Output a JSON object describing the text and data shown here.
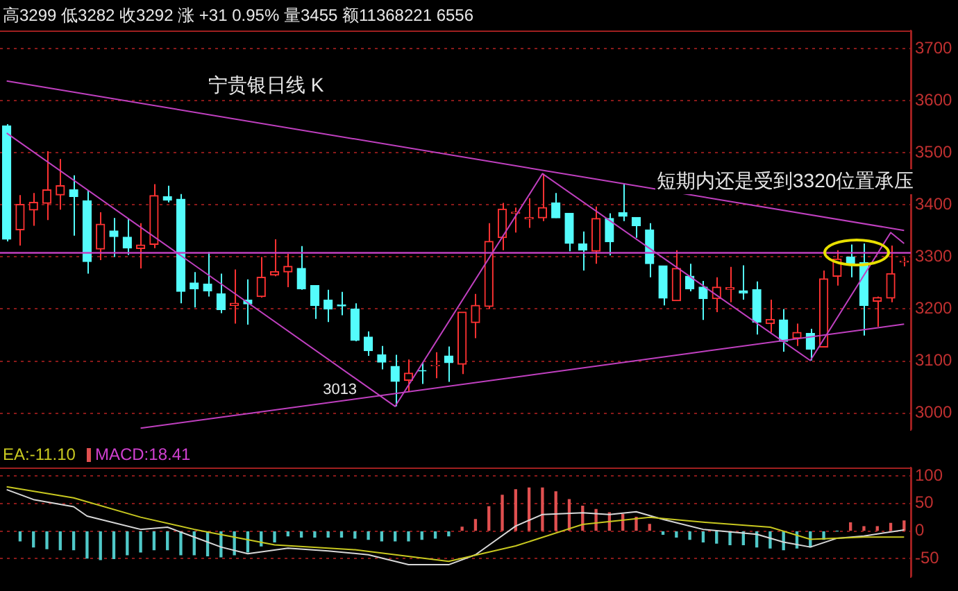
{
  "chart_data": [
    {
      "type": "candlestick",
      "title": "宁贵银日线 K",
      "annotations": [
        "高3299 低3282 收3292 涨 +31 0.95% 量3455 额11368221 6556",
        "短期内还是受到3320位置承压",
        {
          "text": "3013",
          "y": 3013
        }
      ],
      "categories": [
        null,
        null,
        null,
        null,
        null,
        null,
        null,
        null,
        null,
        null,
        null,
        null,
        null,
        null,
        null,
        null,
        null,
        null,
        null,
        null,
        null,
        null,
        null,
        null,
        null,
        null,
        null,
        null,
        null,
        null,
        null,
        null,
        null,
        null,
        null,
        null,
        null,
        null,
        null,
        null,
        null,
        null,
        null,
        null,
        null,
        null,
        null,
        null,
        null,
        null,
        null,
        null,
        null,
        null,
        null,
        null,
        null,
        null,
        null,
        null,
        null,
        null,
        null,
        null,
        null,
        null,
        null,
        null
      ],
      "ohlc": [
        [
          3552,
          3555,
          3330,
          3334
        ],
        [
          3352,
          3419,
          3322,
          3401
        ],
        [
          3390,
          3423,
          3360,
          3405
        ],
        [
          3403,
          3503,
          3371,
          3429
        ],
        [
          3419,
          3488,
          3391,
          3437
        ],
        [
          3429,
          3457,
          3341,
          3416
        ],
        [
          3408,
          3428,
          3268,
          3291
        ],
        [
          3315,
          3386,
          3294,
          3363
        ],
        [
          3350,
          3375,
          3300,
          3339
        ],
        [
          3338,
          3373,
          3304,
          3317
        ],
        [
          3316,
          3365,
          3278,
          3323
        ],
        [
          3324,
          3440,
          3317,
          3418
        ],
        [
          3416,
          3437,
          3405,
          3409
        ],
        [
          3411,
          3421,
          3211,
          3234
        ],
        [
          3250,
          3271,
          3203,
          3239
        ],
        [
          3248,
          3310,
          3224,
          3235
        ],
        [
          3229,
          3268,
          3192,
          3199
        ],
        [
          3207,
          3276,
          3172,
          3211
        ],
        [
          3217,
          3257,
          3170,
          3210
        ],
        [
          3224,
          3300,
          3222,
          3261
        ],
        [
          3265,
          3334,
          3263,
          3272
        ],
        [
          3271,
          3306,
          3242,
          3282
        ],
        [
          3278,
          3321,
          3237,
          3239
        ],
        [
          3245,
          3245,
          3181,
          3207
        ],
        [
          3217,
          3237,
          3175,
          3200
        ],
        [
          3208,
          3233,
          3188,
          3206
        ],
        [
          3200,
          3211,
          3138,
          3140
        ],
        [
          3146,
          3157,
          3110,
          3120
        ],
        [
          3112,
          3129,
          3084,
          3098
        ],
        [
          3090,
          3112,
          3013,
          3061
        ],
        [
          3063,
          3103,
          3042,
          3077
        ],
        [
          3082,
          3098,
          3056,
          3081
        ],
        [
          3091,
          3117,
          3067,
          3092
        ],
        [
          3110,
          3128,
          3060,
          3097
        ],
        [
          3094,
          3194,
          3075,
          3194
        ],
        [
          3174,
          3229,
          3144,
          3207
        ],
        [
          3205,
          3365,
          3200,
          3330
        ],
        [
          3337,
          3404,
          3313,
          3392
        ],
        [
          3384,
          3395,
          3347,
          3386
        ],
        [
          3373,
          3413,
          3356,
          3376
        ],
        [
          3375,
          3460,
          3369,
          3395
        ],
        [
          3404,
          3423,
          3375,
          3375
        ],
        [
          3384,
          3384,
          3311,
          3326
        ],
        [
          3325,
          3349,
          3274,
          3313
        ],
        [
          3311,
          3397,
          3287,
          3374
        ],
        [
          3374,
          3384,
          3303,
          3329
        ],
        [
          3385,
          3441,
          3369,
          3378
        ],
        [
          3376,
          3376,
          3337,
          3360
        ],
        [
          3352,
          3365,
          3261,
          3287
        ],
        [
          3283,
          3283,
          3207,
          3221
        ],
        [
          3216,
          3313,
          3216,
          3278
        ],
        [
          3263,
          3287,
          3234,
          3239
        ],
        [
          3242,
          3254,
          3179,
          3220
        ],
        [
          3220,
          3261,
          3194,
          3242
        ],
        [
          3238,
          3281,
          3213,
          3241
        ],
        [
          3235,
          3284,
          3218,
          3231
        ],
        [
          3237,
          3253,
          3151,
          3175
        ],
        [
          3172,
          3218,
          3155,
          3180
        ],
        [
          3179,
          3200,
          3118,
          3138
        ],
        [
          3144,
          3172,
          3129,
          3155
        ],
        [
          3153,
          3162,
          3101,
          3123
        ],
        [
          3127,
          3274,
          3127,
          3258
        ],
        [
          3263,
          3313,
          3245,
          3296
        ],
        [
          3300,
          3324,
          3261,
          3287
        ],
        [
          3289,
          3326,
          3149,
          3207
        ],
        [
          3215,
          3224,
          3166,
          3222
        ],
        [
          3221,
          3322,
          3213,
          3268
        ],
        [
          3290,
          3299,
          3282,
          3292
        ]
      ],
      "colors": [
        "#54fcfc",
        "#ff3232",
        "#ff3232",
        "#ff3232",
        "#ff3232",
        "#54fcfc",
        "#54fcfc",
        "#ff3232",
        "#54fcfc",
        "#54fcfc",
        "#ff3232",
        "#ff3232",
        "#54fcfc",
        "#54fcfc",
        "#54fcfc",
        "#54fcfc",
        "#54fcfc",
        "#ff3232",
        "#54fcfc",
        "#ff3232",
        "#ff3232",
        "#ff3232",
        "#54fcfc",
        "#54fcfc",
        "#54fcfc",
        "#54fcfc",
        "#54fcfc",
        "#54fcfc",
        "#54fcfc",
        "#54fcfc",
        "#ff3232",
        "#54fcfc",
        "#ff3232",
        "#54fcfc",
        "#ff3232",
        "#ff3232",
        "#ff3232",
        "#ff3232",
        "#ff3232",
        "#ff3232",
        "#ff3232",
        "#54fcfc",
        "#54fcfc",
        "#54fcfc",
        "#ff3232",
        "#54fcfc",
        "#54fcfc",
        "#54fcfc",
        "#54fcfc",
        "#54fcfc",
        "#ff3232",
        "#54fcfc",
        "#54fcfc",
        "#ff3232",
        "#ff3232",
        "#54fcfc",
        "#54fcfc",
        "#ff3232",
        "#54fcfc",
        "#ff3232",
        "#54fcfc",
        "#ff3232",
        "#ff3232",
        "#54fcfc",
        "#54fcfc",
        "#ff3232",
        "#ff3232",
        "#ff3232"
      ],
      "series": [
        {
          "type": "line",
          "color": "#c040c0",
          "values": [
            3638,
            null,
            null,
            null,
            null,
            null,
            null,
            null,
            null,
            null,
            null,
            null,
            null,
            null,
            null,
            null,
            null,
            null,
            null,
            null,
            null,
            null,
            null,
            null,
            null,
            null,
            null,
            null,
            null,
            null,
            null,
            null,
            null,
            null,
            null,
            null,
            null,
            null,
            null,
            null,
            null,
            null,
            null,
            null,
            null,
            null,
            null,
            null,
            null,
            null,
            null,
            null,
            null,
            null,
            null,
            null,
            null,
            null,
            null,
            null,
            null,
            null,
            null,
            null,
            null,
            null,
            null,
            3351
          ]
        },
        {
          "type": "line",
          "color": "#c040c0",
          "values": [
            null,
            null,
            null,
            null,
            null,
            null,
            null,
            null,
            null,
            null,
            2971,
            null,
            null,
            null,
            null,
            null,
            null,
            null,
            null,
            null,
            null,
            null,
            null,
            null,
            null,
            null,
            null,
            null,
            null,
            null,
            null,
            null,
            null,
            null,
            null,
            null,
            null,
            null,
            null,
            null,
            null,
            null,
            null,
            null,
            null,
            null,
            null,
            null,
            null,
            null,
            null,
            null,
            null,
            null,
            null,
            null,
            null,
            null,
            null,
            null,
            null,
            null,
            null,
            null,
            null,
            null,
            null,
            3171
          ]
        },
        {
          "type": "line",
          "color": "#c040c0",
          "values": [
            3538,
            null,
            null,
            null,
            null,
            null,
            null,
            null,
            null,
            null,
            null,
            null,
            null,
            null,
            null,
            null,
            null,
            null,
            null,
            null,
            null,
            null,
            null,
            null,
            null,
            null,
            null,
            null,
            null,
            3013,
            null,
            null,
            null,
            null,
            null,
            null,
            null,
            null,
            null,
            null,
            3460,
            null,
            null,
            null,
            null,
            null,
            null,
            null,
            null,
            null,
            null,
            null,
            null,
            null,
            null,
            null,
            null,
            null,
            null,
            null,
            3101,
            null,
            null,
            null,
            null,
            null,
            3347,
            3326
          ]
        }
      ],
      "ref_lines": [
        {
          "axis": "y",
          "value": 3308,
          "color": "#c040c0"
        }
      ],
      "ylim": [
        2968,
        3735
      ],
      "yticks": [
        3000,
        3100,
        3200,
        3300,
        3400,
        3500,
        3600,
        3700
      ],
      "grid": "y",
      "tick_labels": "y",
      "legend": false
    },
    {
      "type": "bar",
      "legend": "top left",
      "categories": [
        null,
        null,
        null,
        null,
        null,
        null,
        null,
        null,
        null,
        null,
        null,
        null,
        null,
        null,
        null,
        null,
        null,
        null,
        null,
        null,
        null,
        null,
        null,
        null,
        null,
        null,
        null,
        null,
        null,
        null,
        null,
        null,
        null,
        null,
        null,
        null,
        null,
        null,
        null,
        null,
        null,
        null,
        null,
        null,
        null,
        null,
        null,
        null,
        null,
        null,
        null,
        null,
        null,
        null,
        null,
        null,
        null,
        null,
        null,
        null,
        null,
        null,
        null,
        null,
        null,
        null,
        null,
        null
      ],
      "series": [
        {
          "type": "line",
          "name": "EA:-11.10",
          "color": "#c8c820",
          "values": [
            80,
            null,
            null,
            null,
            null,
            60,
            null,
            null,
            null,
            null,
            25,
            null,
            null,
            null,
            3,
            null,
            null,
            null,
            null,
            null,
            -25,
            null,
            null,
            null,
            null,
            null,
            -34,
            null,
            null,
            null,
            null,
            null,
            null,
            -55,
            null,
            null,
            null,
            null,
            -27,
            null,
            null,
            null,
            null,
            12,
            null,
            null,
            null,
            null,
            25,
            null,
            null,
            null,
            16,
            null,
            null,
            null,
            null,
            7,
            null,
            null,
            -15,
            null,
            null,
            null,
            -11,
            null,
            null,
            -11.1
          ]
        },
        {
          "type": "bar",
          "name": "MACD:18.41",
          "color": "#d040d0",
          "values": [
            null,
            -18,
            -29,
            -32,
            -34,
            -34,
            -49,
            -52,
            -50,
            -43,
            -38,
            -34,
            -34,
            -43,
            -43,
            -45,
            -47,
            -43,
            -38,
            -27,
            -20,
            -9,
            -11,
            -11,
            -11,
            -11,
            -13,
            -15,
            -18,
            -18,
            -18,
            -15,
            -13,
            -9,
            7,
            21,
            44,
            65,
            75,
            78,
            78,
            71,
            57,
            45,
            39,
            33,
            30,
            25,
            12,
            -6,
            -11,
            -15,
            -20,
            -22,
            -25,
            -25,
            -29,
            -31,
            -34,
            -31,
            -29,
            -15,
            0,
            15,
            8,
            8,
            14,
            18.41
          ],
          "colors": [
            "#50c8c8",
            "#50c8c8",
            "#50c8c8",
            "#50c8c8",
            "#50c8c8",
            "#50c8c8",
            "#50c8c8",
            "#50c8c8",
            "#50c8c8",
            "#50c8c8",
            "#50c8c8",
            "#50c8c8",
            "#50c8c8",
            "#50c8c8",
            "#50c8c8",
            "#50c8c8",
            "#50c8c8",
            "#50c8c8",
            "#50c8c8",
            "#50c8c8",
            "#50c8c8",
            "#50c8c8",
            "#50c8c8",
            "#50c8c8",
            "#50c8c8",
            "#50c8c8",
            "#50c8c8",
            "#50c8c8",
            "#50c8c8",
            "#50c8c8",
            "#50c8c8",
            "#50c8c8",
            "#50c8c8",
            "#50c8c8",
            "#e05050",
            "#e05050",
            "#e05050",
            "#e05050",
            "#e05050",
            "#e05050",
            "#e05050",
            "#e05050",
            "#e05050",
            "#e05050",
            "#e05050",
            "#e05050",
            "#e05050",
            "#e05050",
            "#e05050",
            "#50c8c8",
            "#50c8c8",
            "#50c8c8",
            "#50c8c8",
            "#50c8c8",
            "#50c8c8",
            "#50c8c8",
            "#50c8c8",
            "#50c8c8",
            "#50c8c8",
            "#50c8c8",
            "#50c8c8",
            "#50c8c8",
            "#50c8c8",
            "#e05050",
            "#e05050",
            "#e05050",
            "#e05050",
            "#e05050"
          ]
        },
        {
          "type": "line",
          "color": "#d8d8d8",
          "values": [
            75,
            null,
            57,
            null,
            null,
            44,
            27,
            null,
            null,
            null,
            3,
            null,
            7,
            null,
            -11,
            null,
            -29,
            null,
            -41,
            null,
            null,
            -31,
            null,
            null,
            -36,
            null,
            null,
            -43,
            null,
            null,
            -61,
            null,
            null,
            -61,
            null,
            -43,
            null,
            null,
            9,
            null,
            30,
            null,
            null,
            33,
            null,
            30,
            null,
            35,
            null,
            21,
            null,
            null,
            3,
            null,
            null,
            null,
            -6,
            null,
            -20,
            null,
            -29,
            null,
            -13,
            null,
            -9,
            null,
            null,
            2
          ]
        }
      ],
      "ylim": [
        -83,
        115
      ],
      "yticks": [
        -50,
        0,
        50,
        100
      ],
      "grid": "y",
      "tick_labels": "y"
    }
  ]
}
